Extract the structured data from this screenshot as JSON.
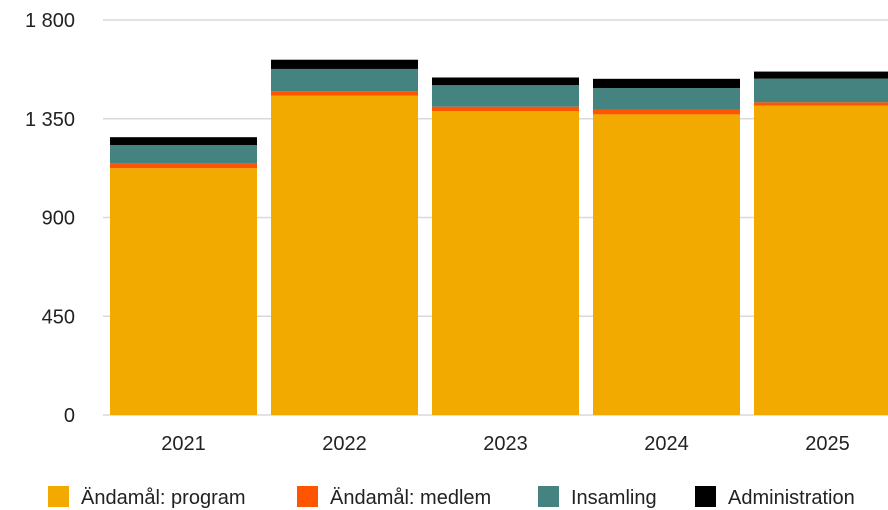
{
  "chart_data": {
    "type": "bar",
    "stacked": true,
    "categories": [
      "2021",
      "2022",
      "2023",
      "2024",
      "2025"
    ],
    "series": [
      {
        "name": "Ändamål: program",
        "color": "#F2A900",
        "values": [
          1125,
          1455,
          1385,
          1370,
          1410
        ]
      },
      {
        "name": "Ändamål: medlem",
        "color": "#FF5500",
        "values": [
          20,
          20,
          20,
          22,
          15
        ]
      },
      {
        "name": "Insamling",
        "color": "#44837F",
        "values": [
          85,
          102,
          98,
          98,
          108
        ]
      },
      {
        "name": "Administration",
        "color": "#000000",
        "values": [
          36,
          42,
          35,
          42,
          32
        ]
      }
    ],
    "ylim": [
      0,
      1800
    ],
    "yticks": [
      0,
      450,
      900,
      1350,
      1800
    ],
    "ytick_labels": [
      "0",
      "450",
      "900",
      "1 350",
      "1 800"
    ],
    "grid": true,
    "legend_position": "bottom"
  }
}
